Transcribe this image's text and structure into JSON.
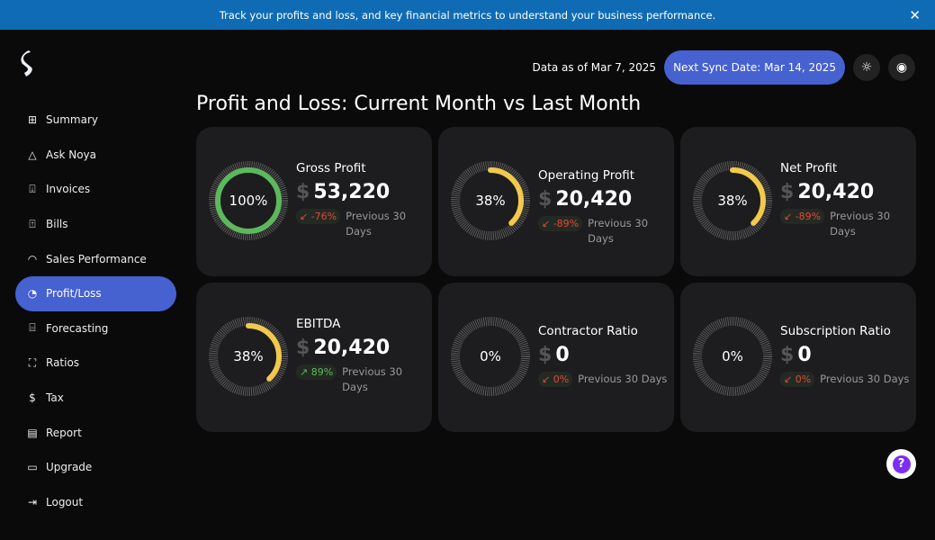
{
  "banner": {
    "text": "Track your profits and loss, and key financial metrics to understand your business performance.",
    "close": "✕"
  },
  "sidebar": {
    "items": [
      {
        "label": "Summary",
        "icon": "grid-icon",
        "glyph": "⊞"
      },
      {
        "label": "Ask Noya",
        "icon": "triangle-icon",
        "glyph": "△"
      },
      {
        "label": "Invoices",
        "icon": "invoice-download-icon",
        "glyph": "⍗"
      },
      {
        "label": "Bills",
        "icon": "bill-upload-icon",
        "glyph": "⍐"
      },
      {
        "label": "Sales Performance",
        "icon": "speedometer-icon",
        "glyph": "◠"
      },
      {
        "label": "Profit/Loss",
        "icon": "pie-chart-icon",
        "glyph": "◔",
        "active": true
      },
      {
        "label": "Forecasting",
        "icon": "presentation-icon",
        "glyph": "⌸"
      },
      {
        "label": "Ratios",
        "icon": "nodes-icon",
        "glyph": "⛶"
      },
      {
        "label": "Tax",
        "icon": "dollar-circle-icon",
        "glyph": "$"
      },
      {
        "label": "Report",
        "icon": "report-icon",
        "glyph": "▤"
      },
      {
        "label": "Upgrade",
        "icon": "credit-card-icon",
        "glyph": "▭"
      },
      {
        "label": "Logout",
        "icon": "logout-icon",
        "glyph": "⇥"
      }
    ]
  },
  "header": {
    "data_as_of": "Data as of Mar 7, 2025",
    "next_sync": "Next Sync Date: Mar 14, 2025"
  },
  "page_title": "Profit and Loss: Current Month vs Last Month",
  "colors": {
    "green": "#5cb85c",
    "yellow": "#f2c94c",
    "accent": "#4661d0",
    "negative": "#e04a3a",
    "positive": "#5cb85c"
  },
  "cards": [
    {
      "title": "Gross Profit",
      "percent": 100,
      "percent_label": "100%",
      "currency": "$",
      "amount": "53,220",
      "delta": "↙ -76%",
      "delta_dir": "neg",
      "period": "Previous 30 Days",
      "color": "#5cb85c"
    },
    {
      "title": "Operating Profit",
      "percent": 38,
      "percent_label": "38%",
      "currency": "$",
      "amount": "20,420",
      "delta": "↙ -89%",
      "delta_dir": "neg",
      "period": "Previous 30 Days",
      "color": "#f2c94c"
    },
    {
      "title": "Net Profit",
      "percent": 38,
      "percent_label": "38%",
      "currency": "$",
      "amount": "20,420",
      "delta": "↙ -89%",
      "delta_dir": "neg",
      "period": "Previous 30 Days",
      "color": "#f2c94c"
    },
    {
      "title": "EBITDA",
      "percent": 38,
      "percent_label": "38%",
      "currency": "$",
      "amount": "20,420",
      "delta": "↗ 89%",
      "delta_dir": "pos",
      "period": "Previous 30 Days",
      "color": "#f2c94c"
    },
    {
      "title": "Contractor Ratio",
      "percent": 0,
      "percent_label": "0%",
      "currency": "$",
      "amount": "0",
      "delta": "↙ 0%",
      "delta_dir": "neg",
      "period": "Previous 30 Days",
      "color": "#f2c94c"
    },
    {
      "title": "Subscription Ratio",
      "percent": 0,
      "percent_label": "0%",
      "currency": "$",
      "amount": "0",
      "delta": "↙ 0%",
      "delta_dir": "neg",
      "period": "Previous 30 Days",
      "color": "#f2c94c"
    }
  ]
}
